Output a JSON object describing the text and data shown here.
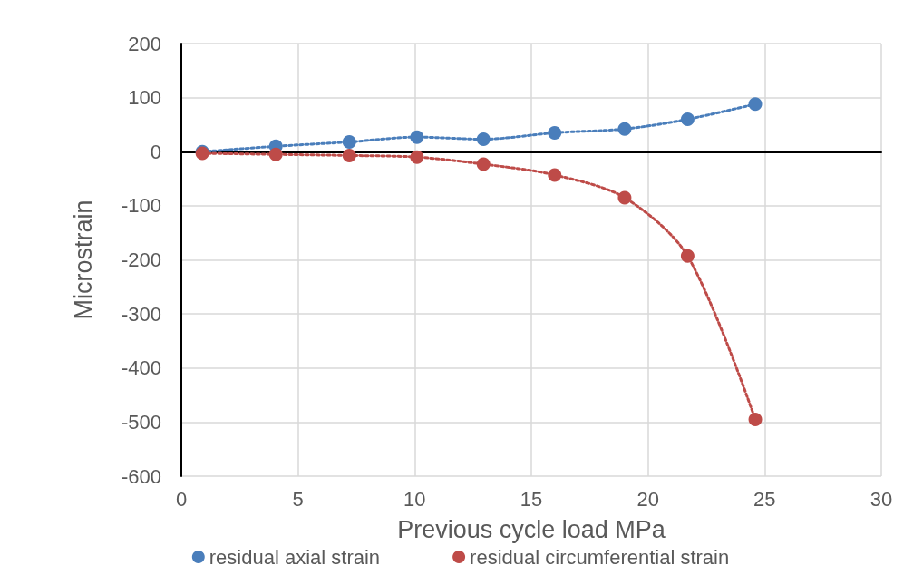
{
  "chart_data": {
    "type": "line",
    "xlabel": "Previous cycle load MPa",
    "ylabel": "Microstrain",
    "xlim": [
      0,
      30
    ],
    "xticks": [
      0,
      5,
      10,
      15,
      20,
      25,
      30
    ],
    "ylim": [
      -600,
      200
    ],
    "yticks": [
      -600,
      -500,
      -400,
      -300,
      -200,
      -100,
      0,
      100,
      200
    ],
    "grid": true,
    "legend": "bottom",
    "marker": "circle",
    "line_style": "dotted",
    "series": [
      {
        "name": "residual axial strain",
        "color": "#4a7ebb",
        "x": [
          0.9,
          4.05,
          7.2,
          10.1,
          12.95,
          16,
          19,
          21.7,
          24.6
        ],
        "values": [
          0,
          10,
          18,
          27,
          23,
          35,
          42,
          60,
          88
        ]
      },
      {
        "name": "residual circumferential strain",
        "color": "#be4b48",
        "x": [
          0.9,
          4.05,
          7.2,
          10.1,
          12.95,
          16,
          19,
          21.7,
          24.6
        ],
        "values": [
          -3,
          -5,
          -7,
          -10,
          -23,
          -43,
          -85,
          -193,
          -495
        ]
      }
    ]
  }
}
